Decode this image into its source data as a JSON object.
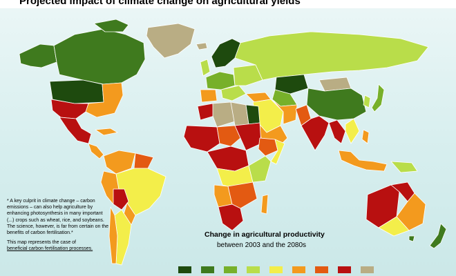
{
  "title": "Projected impact of climate change on agricultural yields",
  "legend": {
    "title": "Change in agricultural productivity",
    "subtitle": "between 2003 and the 2080s",
    "colors": [
      "#1e4a0e",
      "#3f7a1e",
      "#77b02a",
      "#b9dd4a",
      "#f3ee4a",
      "#f39a1e",
      "#e35a12",
      "#b81010",
      "#b9ad84"
    ]
  },
  "note": {
    "quote": "* A key culprit in climate change – carbon emissions – can also help agriculture by enhancing photosynthesis in many important (...) crops such as wheat, rice, and soybeans. The science, however, is far from certain on the benefits of carbon fertilisation.*",
    "footer_line1": "This map represents the case of",
    "footer_line2": "beneficial carbon fertilisation processes."
  },
  "colors": {
    "very_high_gain": "#1e4a0e",
    "high_gain": "#3f7a1e",
    "gain": "#77b02a",
    "slight_gain": "#b9dd4a",
    "slight_loss": "#f3ee4a",
    "loss": "#f39a1e",
    "high_loss": "#e35a12",
    "severe_loss": "#b81010",
    "no_data": "#b9ad84",
    "ocean": "#d6eeee"
  }
}
